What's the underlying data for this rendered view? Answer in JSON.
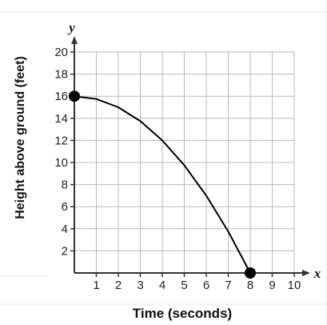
{
  "chart_data": {
    "type": "line",
    "xlabel": "Time (seconds)",
    "ylabel": "Height above ground (feet)",
    "x_axis_name": "x",
    "y_axis_name": "y",
    "xlim": [
      0,
      10
    ],
    "ylim": [
      0,
      20
    ],
    "xticks": [
      "1",
      "2",
      "3",
      "4",
      "5",
      "6",
      "7",
      "8",
      "9",
      "10"
    ],
    "yticks": [
      "2",
      "4",
      "6",
      "8",
      "10",
      "12",
      "14",
      "16",
      "18",
      "20"
    ],
    "grid": true,
    "series": [
      {
        "x": [
          0,
          1,
          2,
          3,
          4,
          5,
          6,
          7,
          8
        ],
        "y": [
          16,
          15.75,
          15,
          13.75,
          12,
          9.75,
          7,
          3.75,
          0
        ],
        "color": "#000000"
      }
    ],
    "points": [
      {
        "x": 0,
        "y": 16
      },
      {
        "x": 8,
        "y": 0
      }
    ]
  }
}
